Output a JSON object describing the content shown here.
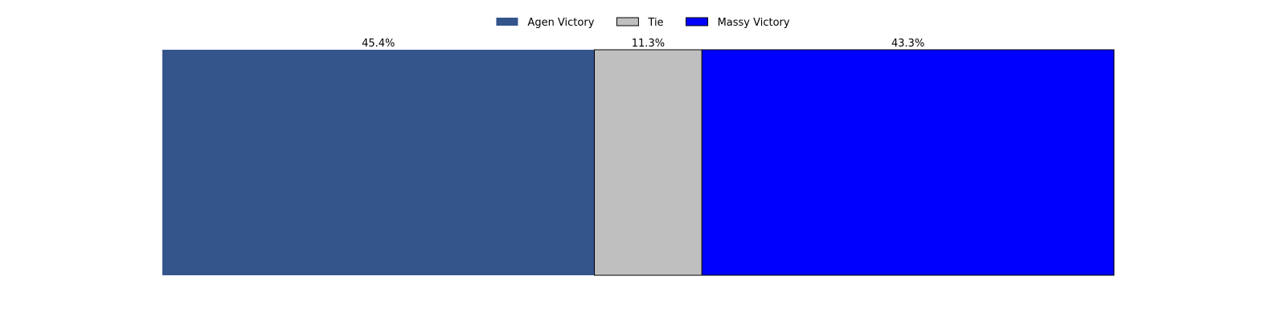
{
  "chart_data": {
    "type": "bar",
    "orientation": "horizontal-stacked",
    "categories": [
      "Agen Victory",
      "Tie",
      "Massy Victory"
    ],
    "values": [
      45.4,
      11.3,
      43.3
    ],
    "labels": [
      "45.4%",
      "11.3%",
      "43.3%"
    ],
    "colors": [
      "#34548c",
      "#bfbfbf",
      "#0000ff"
    ],
    "xlim": [
      0,
      100
    ],
    "axes_visible": false,
    "grid": false,
    "legend": {
      "placement": "top-center",
      "entries": [
        "Agen Victory",
        "Tie",
        "Massy Victory"
      ]
    }
  }
}
